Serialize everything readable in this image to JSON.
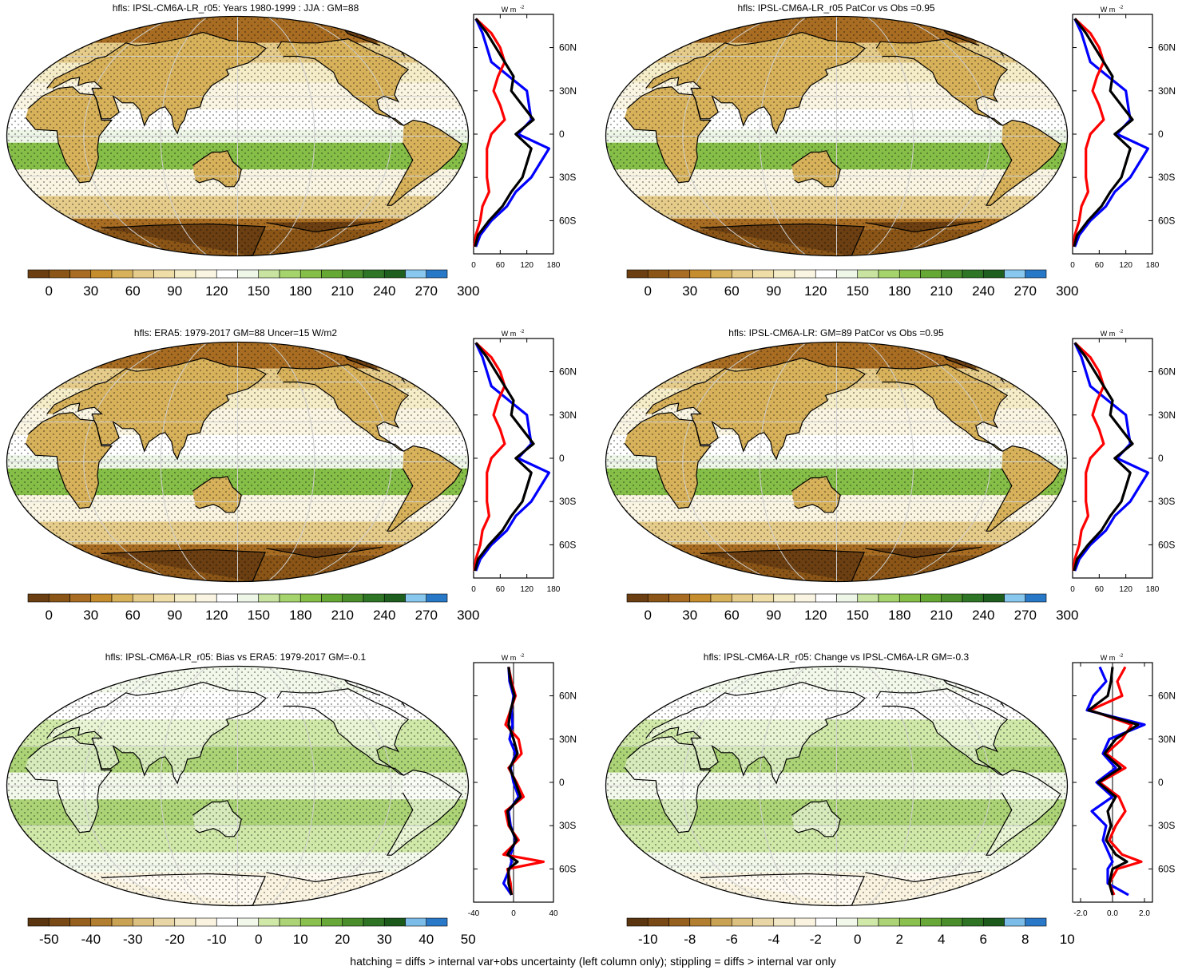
{
  "footnote": "hatching = diffs > internal var+obs uncertainty (left column only); stippling = diffs > internal var only",
  "zonal_unit": "W m",
  "zonal_unit_sup": "-2",
  "lat_ticks": [
    "60N",
    "30N",
    "0",
    "30S",
    "60S"
  ],
  "lat_values": [
    60,
    30,
    0,
    -30,
    -60
  ],
  "colors": {
    "model_line": "#ff0000",
    "obs_line": "#0000ff",
    "ref_line": "#000000"
  },
  "colormaps": {
    "absolute": [
      "#6b3f12",
      "#8a5516",
      "#a86d22",
      "#c58d2e",
      "#d8b25b",
      "#e6cc8a",
      "#efdda8",
      "#f5ecc8",
      "#faf5e2",
      "#ffffff",
      "#eef6e8",
      "#c8e4a0",
      "#a6d46c",
      "#86bf48",
      "#66a834",
      "#4a8f2c",
      "#2e7626",
      "#1e5e1e",
      "#88c8ee",
      "#2878c8"
    ],
    "diverging": [
      "#5a3510",
      "#7a4a16",
      "#96601e",
      "#b27e30",
      "#c9a254",
      "#dcc080",
      "#e8d6a6",
      "#f2e7c6",
      "#faf3e0",
      "#ffffff",
      "#f2f8ea",
      "#d0e8a8",
      "#acd476",
      "#8ac04e",
      "#68a838",
      "#4a8e2c",
      "#2e7424",
      "#1c5a1c",
      "#7cbce8",
      "#2a78c8"
    ]
  },
  "chart_data": [
    {
      "type": "heatmap",
      "title": "hfls: IPSL-CM6A-LR_r05: Years 1980-1999 : JJA : GM=88",
      "colorbar_ticks": [
        "0",
        "30",
        "60",
        "90",
        "120",
        "150",
        "180",
        "210",
        "240",
        "270",
        "300"
      ],
      "zonal_mean": {
        "xticks": [
          "0",
          "60",
          "120",
          "180"
        ],
        "xlim": [
          0,
          180
        ],
        "lat": [
          80,
          70,
          60,
          50,
          40,
          30,
          20,
          10,
          0,
          -10,
          -20,
          -30,
          -40,
          -50,
          -60,
          -70,
          -78
        ],
        "red": [
          5,
          40,
          60,
          70,
          55,
          45,
          60,
          70,
          40,
          30,
          30,
          30,
          35,
          20,
          15,
          5,
          2
        ],
        "blue": [
          5,
          20,
          30,
          40,
          80,
          120,
          125,
          130,
          100,
          170,
          150,
          130,
          95,
          75,
          40,
          15,
          5
        ],
        "black": [
          5,
          30,
          50,
          70,
          90,
          85,
          110,
          135,
          95,
          130,
          120,
          110,
          85,
          65,
          35,
          10,
          3
        ]
      }
    },
    {
      "type": "heatmap",
      "title": "hfls: IPSL-CM6A-LR_r05 PatCor vs Obs =0.95",
      "colorbar_ticks": [
        "0",
        "30",
        "60",
        "90",
        "120",
        "150",
        "180",
        "210",
        "240",
        "270",
        "300"
      ],
      "zonal_mean": {
        "xticks": [
          "0",
          "60",
          "120",
          "180"
        ],
        "xlim": [
          0,
          180
        ],
        "lat": [
          80,
          70,
          60,
          50,
          40,
          30,
          20,
          10,
          0,
          -10,
          -20,
          -30,
          -40,
          -50,
          -60,
          -70,
          -78
        ],
        "red": [
          5,
          40,
          60,
          70,
          55,
          45,
          60,
          70,
          40,
          30,
          30,
          30,
          35,
          20,
          15,
          5,
          2
        ],
        "blue": [
          5,
          20,
          30,
          40,
          80,
          120,
          125,
          130,
          100,
          170,
          150,
          130,
          95,
          75,
          40,
          15,
          5
        ],
        "black": [
          5,
          30,
          50,
          70,
          90,
          85,
          110,
          135,
          95,
          130,
          120,
          110,
          85,
          65,
          35,
          10,
          3
        ]
      }
    },
    {
      "type": "heatmap",
      "title": "hfls: ERA5: 1979-2017 GM=88 Uncer=15 W/m2",
      "colorbar_ticks": [
        "0",
        "30",
        "60",
        "90",
        "120",
        "150",
        "180",
        "210",
        "240",
        "270",
        "300"
      ],
      "zonal_mean": {
        "xticks": [
          "0",
          "60",
          "120",
          "180"
        ],
        "xlim": [
          0,
          180
        ],
        "lat": [
          80,
          70,
          60,
          50,
          40,
          30,
          20,
          10,
          0,
          -10,
          -20,
          -30,
          -40,
          -50,
          -60,
          -70,
          -78
        ],
        "red": [
          5,
          40,
          60,
          70,
          55,
          45,
          60,
          70,
          40,
          30,
          30,
          30,
          35,
          20,
          15,
          5,
          2
        ],
        "blue": [
          5,
          20,
          30,
          40,
          80,
          120,
          125,
          130,
          100,
          170,
          150,
          130,
          95,
          75,
          40,
          15,
          5
        ],
        "black": [
          5,
          30,
          50,
          70,
          90,
          85,
          110,
          135,
          95,
          130,
          120,
          110,
          85,
          65,
          35,
          10,
          3
        ]
      }
    },
    {
      "type": "heatmap",
      "title": "hfls: IPSL-CM6A-LR: GM=89 PatCor vs Obs =0.95",
      "colorbar_ticks": [
        "0",
        "30",
        "60",
        "90",
        "120",
        "150",
        "180",
        "210",
        "240",
        "270",
        "300"
      ],
      "zonal_mean": {
        "xticks": [
          "0",
          "60",
          "120",
          "180"
        ],
        "xlim": [
          0,
          180
        ],
        "lat": [
          80,
          70,
          60,
          50,
          40,
          30,
          20,
          10,
          0,
          -10,
          -20,
          -30,
          -40,
          -50,
          -60,
          -70,
          -78
        ],
        "red": [
          5,
          40,
          60,
          70,
          55,
          45,
          60,
          70,
          40,
          30,
          30,
          30,
          35,
          20,
          15,
          5,
          2
        ],
        "blue": [
          5,
          20,
          30,
          40,
          80,
          120,
          125,
          130,
          100,
          170,
          150,
          130,
          95,
          75,
          40,
          15,
          5
        ],
        "black": [
          5,
          30,
          50,
          70,
          90,
          85,
          110,
          135,
          95,
          130,
          120,
          110,
          85,
          65,
          35,
          10,
          3
        ]
      }
    },
    {
      "type": "heatmap",
      "title": "hfls: IPSL-CM6A-LR_r05: Bias vs ERA5: 1979-2017 GM=-0.1",
      "colorbar_ticks": [
        "-50",
        "-40",
        "-30",
        "-20",
        "-10",
        "0",
        "10",
        "20",
        "30",
        "40",
        "50"
      ],
      "zonal_mean": {
        "xticks": [
          "-40",
          "0",
          "40"
        ],
        "xlim": [
          -40,
          40
        ],
        "lat": [
          80,
          70,
          60,
          50,
          40,
          30,
          20,
          10,
          0,
          -10,
          -20,
          -30,
          -40,
          -50,
          -55,
          -60,
          -70,
          -78
        ],
        "red": [
          -5,
          -2,
          2,
          -3,
          -8,
          5,
          8,
          -5,
          3,
          10,
          -8,
          -5,
          5,
          -10,
          30,
          -6,
          -3,
          -2
        ],
        "blue": [
          -5,
          -4,
          0,
          -2,
          -1,
          -4,
          2,
          -3,
          0,
          5,
          -5,
          -3,
          2,
          -3,
          -2,
          -4,
          -10,
          -2
        ],
        "black": [
          -5,
          -3,
          1,
          -3,
          -5,
          0,
          4,
          -4,
          2,
          7,
          -6,
          -4,
          3,
          -6,
          4,
          -5,
          -5,
          -2
        ]
      }
    },
    {
      "type": "heatmap",
      "title": "hfls: IPSL-CM6A-LR_r05: Change vs IPSL-CM6A-LR GM=-0.3",
      "colorbar_ticks": [
        "-10",
        "-8",
        "-6",
        "-4",
        "-2",
        "0",
        "2",
        "4",
        "6",
        "8",
        "10"
      ],
      "zonal_mean": {
        "xticks": [
          "-2.0",
          "0.0",
          "2.0"
        ],
        "xlim": [
          -2.5,
          2.5
        ],
        "lat": [
          80,
          70,
          60,
          50,
          40,
          30,
          20,
          10,
          0,
          -10,
          -20,
          -30,
          -40,
          -50,
          -55,
          -60,
          -70,
          -78
        ],
        "red": [
          0.8,
          0.3,
          0.6,
          -1.4,
          1.2,
          0.6,
          -0.4,
          0.8,
          -0.8,
          0.4,
          0.8,
          0.2,
          -0.2,
          0.6,
          1.8,
          0.3,
          -0.2,
          0.1
        ],
        "blue": [
          -0.8,
          -0.4,
          -1.2,
          -1.6,
          2.0,
          -0.2,
          -0.6,
          0.2,
          -1.0,
          0.0,
          -1.3,
          -0.4,
          -0.6,
          -0.2,
          0.0,
          -0.3,
          -0.3,
          1.0
        ],
        "black": [
          0.0,
          -0.1,
          -0.3,
          -1.5,
          1.6,
          0.2,
          -0.5,
          0.5,
          -0.9,
          0.2,
          -0.3,
          -0.1,
          -0.4,
          0.2,
          0.9,
          0.0,
          -0.2,
          0.0
        ]
      }
    }
  ]
}
